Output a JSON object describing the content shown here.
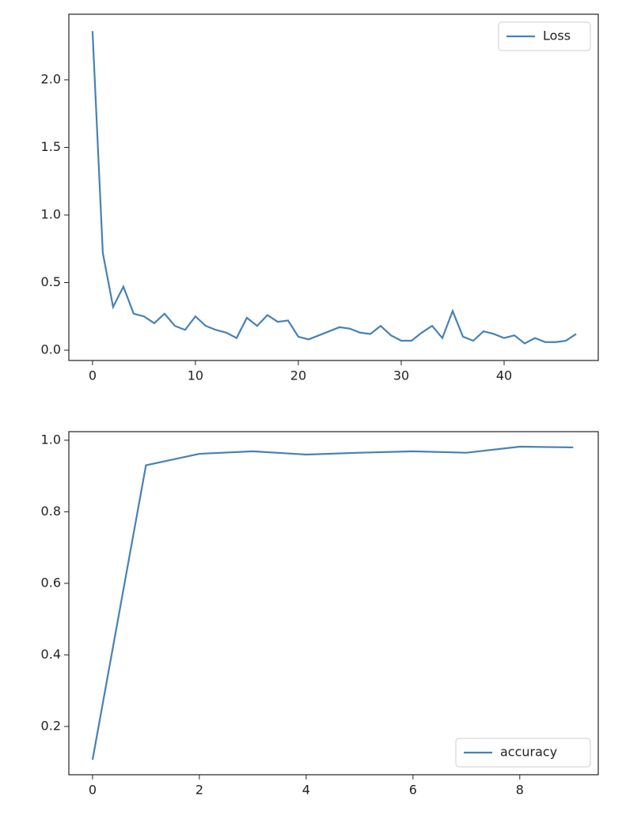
{
  "chart_data": [
    {
      "type": "line",
      "x": [
        0,
        1,
        2,
        3,
        4,
        5,
        6,
        7,
        8,
        9,
        10,
        11,
        12,
        13,
        14,
        15,
        16,
        17,
        18,
        19,
        20,
        21,
        22,
        23,
        24,
        25,
        26,
        27,
        28,
        29,
        30,
        31,
        32,
        33,
        34,
        35,
        36,
        37,
        38,
        39,
        40,
        41,
        42,
        43,
        44,
        45,
        46,
        47
      ],
      "series": [
        {
          "name": "Loss",
          "color": "#4682b4",
          "values": [
            2.36,
            0.72,
            0.32,
            0.47,
            0.27,
            0.25,
            0.2,
            0.27,
            0.18,
            0.15,
            0.25,
            0.18,
            0.15,
            0.13,
            0.09,
            0.24,
            0.18,
            0.26,
            0.21,
            0.22,
            0.1,
            0.08,
            0.11,
            0.14,
            0.17,
            0.16,
            0.13,
            0.12,
            0.18,
            0.11,
            0.07,
            0.07,
            0.13,
            0.18,
            0.09,
            0.29,
            0.1,
            0.07,
            0.14,
            0.12,
            0.09,
            0.11,
            0.05,
            0.09,
            0.06,
            0.06,
            0.07,
            0.12
          ]
        }
      ],
      "xlim": [
        -2.3,
        49.15
      ],
      "ylim": [
        -0.076,
        2.485
      ],
      "xticks": [
        0,
        10,
        20,
        30,
        40
      ],
      "yticks": [
        {
          "value": 0,
          "label": "0.0"
        },
        0.5,
        {
          "value": 1,
          "label": "1.0"
        },
        1.5,
        {
          "value": 2,
          "label": "2.0"
        }
      ],
      "legend": "upper right"
    },
    {
      "type": "line",
      "x": [
        0,
        1,
        2,
        3,
        4,
        5,
        6,
        7,
        8,
        9
      ],
      "series": [
        {
          "name": "accuracy",
          "color": "#4682b4",
          "values": [
            0.107,
            0.93,
            0.962,
            0.969,
            0.96,
            0.965,
            0.969,
            0.965,
            0.982,
            0.98
          ]
        }
      ],
      "xlim": [
        -0.444,
        9.47
      ],
      "ylim": [
        0.065,
        1.024
      ],
      "xticks": [
        0,
        2,
        4,
        6,
        8
      ],
      "yticks": [
        0.2,
        0.4,
        0.6,
        0.8,
        {
          "value": 1,
          "label": "1.0"
        }
      ],
      "legend": "lower right"
    }
  ]
}
